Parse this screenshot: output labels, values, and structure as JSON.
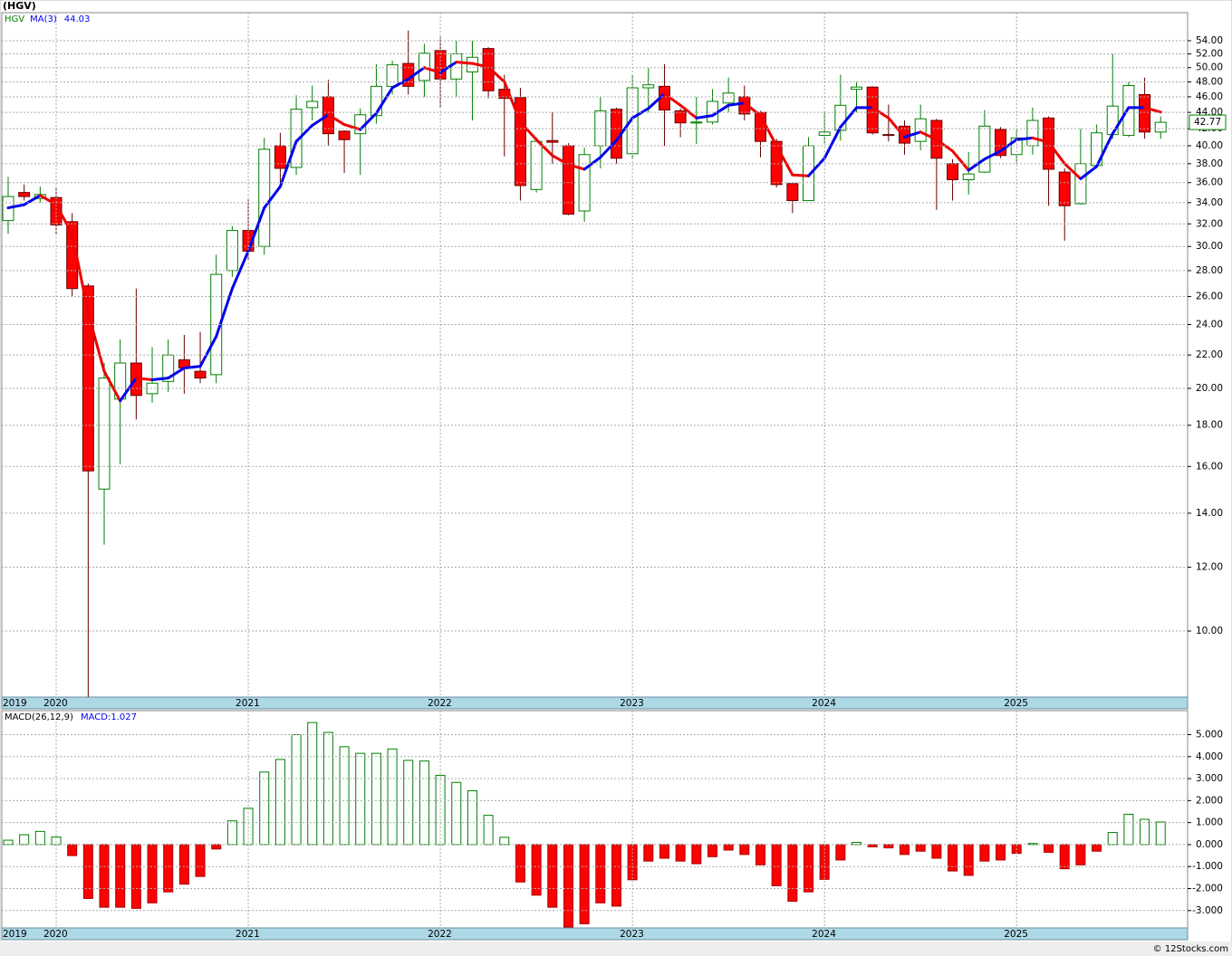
{
  "chart_data": [
    {
      "type": "candlestick",
      "title": "(HGV)",
      "symbol": "HGV",
      "log_scale": true,
      "grid": true,
      "up_color": "#008000",
      "down_color": "#ff0000",
      "categories": [
        "2019",
        null,
        null,
        "2020",
        null,
        null,
        null,
        null,
        null,
        null,
        null,
        null,
        null,
        null,
        null,
        "2021",
        null,
        null,
        null,
        null,
        null,
        null,
        null,
        null,
        null,
        null,
        null,
        "2022",
        null,
        null,
        null,
        null,
        null,
        null,
        null,
        null,
        null,
        null,
        null,
        "2023",
        null,
        null,
        null,
        null,
        null,
        null,
        null,
        null,
        null,
        null,
        null,
        "2024",
        null,
        null,
        null,
        null,
        null,
        null,
        null,
        null,
        null,
        null,
        null,
        "2025",
        null,
        null,
        null,
        null,
        null,
        null,
        null,
        null,
        null
      ],
      "open": [
        32.3,
        35.0,
        34.4,
        34.5,
        32.2,
        26.8,
        15.0,
        19.4,
        21.5,
        19.7,
        20.4,
        21.7,
        21.0,
        20.8,
        28.0,
        31.4,
        30.0,
        40.0,
        37.6,
        44.6,
        46.0,
        41.7,
        41.4,
        43.6,
        47.4,
        50.6,
        48.2,
        52.5,
        48.4,
        49.4,
        52.8,
        47.0,
        45.9,
        35.3,
        40.6,
        40.0,
        33.2,
        40.0,
        44.4,
        39.1,
        47.2,
        47.4,
        44.2,
        42.7,
        42.8,
        45.2,
        46.0,
        44.0,
        40.5,
        35.9,
        34.2,
        41.2,
        41.8,
        47.0,
        47.3,
        41.3,
        42.3,
        40.5,
        43.0,
        38.0,
        36.3,
        37.1,
        41.9,
        39.0,
        40.0,
        43.3,
        37.1,
        33.9,
        37.8,
        41.3,
        41.2,
        46.3,
        41.6
      ],
      "high": [
        36.6,
        35.8,
        35.6,
        35.4,
        33.0,
        27.0,
        21.5,
        23.0,
        26.6,
        22.5,
        23.0,
        23.3,
        23.5,
        29.3,
        31.8,
        34.3,
        40.9,
        41.5,
        46.2,
        47.5,
        48.3,
        41.8,
        44.5,
        50.5,
        51.0,
        55.6,
        53.5,
        54.6,
        54.0,
        54.0,
        53.0,
        49.0,
        47.2,
        41.0,
        44.0,
        40.3,
        39.8,
        46.0,
        44.6,
        49.0,
        50.0,
        50.5,
        44.5,
        46.0,
        47.0,
        48.6,
        47.5,
        44.2,
        40.8,
        35.9,
        41.0,
        44.0,
        49.0,
        48.0,
        47.4,
        45.0,
        43.0,
        45.0,
        43.2,
        38.5,
        39.3,
        44.3,
        42.2,
        42.0,
        44.6,
        43.5,
        37.5,
        42.0,
        42.5,
        52.0,
        48.0,
        48.6,
        43.5
      ],
      "low": [
        31.1,
        34.2,
        34.0,
        31.0,
        26.0,
        8.0,
        12.8,
        16.1,
        18.3,
        19.2,
        19.8,
        19.7,
        20.3,
        20.3,
        27.5,
        28.8,
        29.3,
        36.0,
        36.8,
        43.0,
        40.0,
        37.0,
        36.8,
        42.6,
        46.3,
        46.3,
        46.0,
        44.7,
        46.0,
        43.0,
        45.8,
        38.8,
        34.2,
        35.0,
        38.0,
        32.8,
        32.2,
        37.5,
        38.0,
        38.5,
        44.0,
        40.0,
        41.0,
        40.2,
        42.5,
        44.0,
        43.0,
        38.7,
        35.5,
        33.0,
        34.2,
        40.3,
        40.6,
        44.0,
        41.3,
        40.5,
        39.0,
        39.5,
        33.3,
        34.2,
        34.8,
        37.0,
        38.6,
        38.0,
        39.0,
        33.7,
        30.5,
        33.8,
        37.5,
        40.8,
        41.0,
        40.8,
        40.8
      ],
      "close": [
        34.6,
        34.6,
        34.8,
        31.9,
        26.6,
        15.8,
        20.6,
        21.5,
        19.6,
        20.3,
        22.0,
        21.2,
        20.6,
        27.7,
        31.4,
        29.6,
        39.6,
        37.5,
        44.4,
        45.4,
        41.4,
        40.7,
        43.7,
        47.4,
        50.4,
        47.4,
        52.1,
        48.4,
        52.0,
        51.5,
        46.8,
        45.8,
        35.7,
        40.5,
        40.4,
        32.9,
        39.0,
        44.2,
        38.6,
        47.2,
        47.6,
        44.3,
        42.7,
        42.8,
        45.4,
        46.5,
        43.8,
        40.5,
        35.8,
        34.2,
        40.0,
        41.6,
        44.9,
        47.3,
        41.5,
        41.2,
        40.3,
        43.2,
        38.6,
        36.3,
        36.9,
        42.3,
        38.9,
        40.9,
        43.0,
        37.4,
        33.7,
        38.0,
        41.5,
        44.8,
        47.5,
        41.6,
        42.77
      ],
      "ma": {
        "name": "MA(3)",
        "rising_color": "#0000ee",
        "falling_color": "#ee0000",
        "values": [
          33.5,
          33.8,
          34.7,
          33.8,
          31.1,
          24.8,
          21.0,
          19.3,
          20.6,
          20.5,
          20.6,
          21.2,
          21.3,
          23.2,
          26.6,
          29.6,
          33.5,
          35.6,
          40.5,
          42.4,
          43.7,
          42.5,
          41.9,
          43.9,
          47.2,
          48.4,
          50.0,
          49.3,
          50.8,
          50.6,
          50.1,
          48.0,
          42.8,
          40.7,
          38.9,
          37.9,
          37.4,
          38.7,
          40.6,
          43.3,
          44.5,
          46.4,
          44.9,
          43.3,
          43.6,
          44.9,
          45.2,
          43.6,
          40.0,
          36.8,
          36.7,
          38.6,
          42.2,
          44.6,
          44.6,
          43.3,
          41.0,
          41.6,
          40.7,
          39.4,
          37.3,
          38.5,
          39.4,
          40.7,
          40.9,
          40.4,
          38.0,
          36.4,
          37.7,
          41.4,
          44.6,
          44.6,
          44.03
        ]
      },
      "ylim": [
        8.28,
        58.5
      ],
      "yticks": [
        {
          "value": 10,
          "label": "10.00"
        },
        {
          "value": 12,
          "label": "12.00"
        },
        {
          "value": 14,
          "label": "14.00"
        },
        {
          "value": 16,
          "label": "16.00"
        },
        {
          "value": 18,
          "label": "18.00"
        },
        {
          "value": 20,
          "label": "20.00"
        },
        {
          "value": 22,
          "label": "22.00"
        },
        {
          "value": 24,
          "label": "24.00"
        },
        {
          "value": 26,
          "label": "26.00"
        },
        {
          "value": 28,
          "label": "28.00"
        },
        {
          "value": 30,
          "label": "30.00"
        },
        {
          "value": 32,
          "label": "32.00"
        },
        {
          "value": 34,
          "label": "34.00"
        },
        {
          "value": 36,
          "label": "36.00"
        },
        {
          "value": 38,
          "label": "38.00"
        },
        {
          "value": 40,
          "label": "40.00"
        },
        {
          "value": 42,
          "label": "42.00"
        },
        {
          "value": 44,
          "label": "44.00"
        },
        {
          "value": 46,
          "label": "46.00"
        },
        {
          "value": 48,
          "label": "48.00"
        },
        {
          "value": 50,
          "label": "50.00"
        },
        {
          "value": 52,
          "label": "52.00"
        },
        {
          "value": 54,
          "label": "54.00"
        }
      ]
    },
    {
      "type": "bar",
      "title": "MACD(26,12,9)",
      "grid": true,
      "up_color": "#008000",
      "down_color": "#ff0000",
      "series": [
        {
          "name": "MACD:",
          "color": "#0000ee",
          "values": [
            0.2,
            0.45,
            0.6,
            0.35,
            -0.5,
            -2.45,
            -2.85,
            -2.85,
            -2.9,
            -2.65,
            -2.15,
            -1.8,
            -1.45,
            -0.2,
            1.08,
            1.65,
            3.3,
            3.87,
            5.0,
            5.55,
            5.1,
            4.45,
            4.15,
            4.15,
            4.35,
            3.83,
            3.8,
            3.15,
            2.83,
            2.45,
            1.33,
            0.33,
            -1.7,
            -2.3,
            -2.85,
            -3.75,
            -3.6,
            -2.65,
            -2.8,
            -1.6,
            -0.75,
            -0.62,
            -0.75,
            -0.87,
            -0.55,
            -0.25,
            -0.45,
            -0.92,
            -1.87,
            -2.58,
            -2.15,
            -1.58,
            -0.7,
            0.1,
            -0.1,
            -0.15,
            -0.45,
            -0.3,
            -0.62,
            -1.2,
            -1.4,
            -0.75,
            -0.7,
            -0.4,
            0.05,
            -0.35,
            -1.1,
            -0.92,
            -0.3,
            0.55,
            1.38,
            1.15,
            1.027
          ]
        }
      ],
      "ylim": [
        -3.79,
        6.09
      ],
      "yticks": [
        {
          "value": -3,
          "label": "-3.000"
        },
        {
          "value": -2,
          "label": "-2.000"
        },
        {
          "value": -1,
          "label": "-1.000"
        },
        {
          "value": 0,
          "label": "0.000"
        },
        {
          "value": 1,
          "label": "1.000"
        },
        {
          "value": 2,
          "label": "2.000"
        },
        {
          "value": 3,
          "label": "3.000"
        },
        {
          "value": 4,
          "label": "4.000"
        },
        {
          "value": 5,
          "label": "5.000"
        }
      ]
    }
  ],
  "footer": "© 12Stocks.com"
}
